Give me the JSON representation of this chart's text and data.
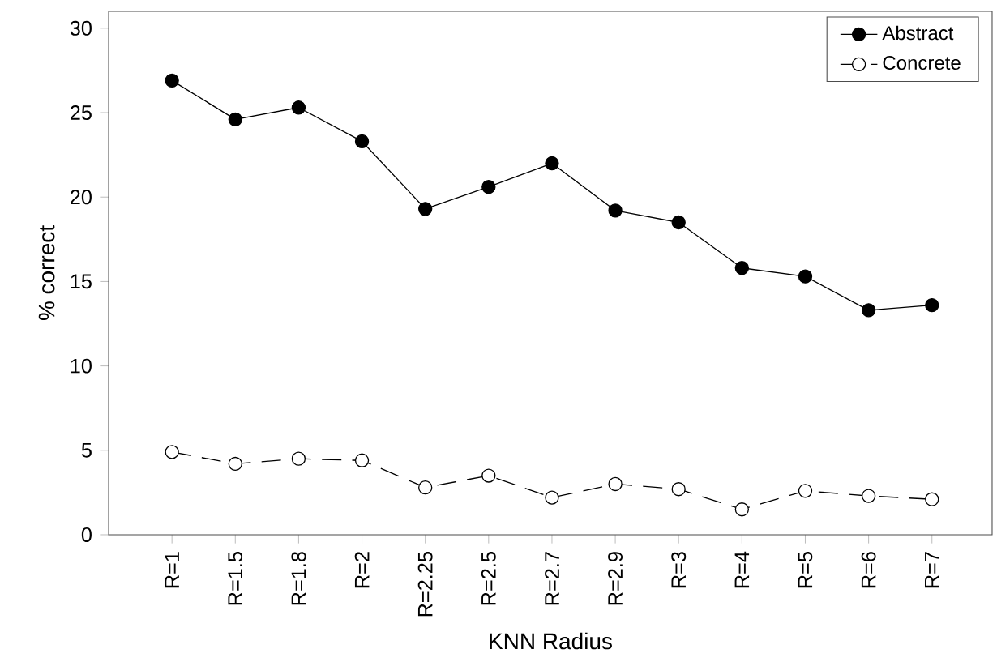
{
  "chart_data": {
    "type": "line",
    "xlabel": "KNN Radius",
    "ylabel": "% correct",
    "categories": [
      "R=1",
      "R=1.5",
      "R=1.8",
      "R=2",
      "R=2.25",
      "R=2.5",
      "R=2.7",
      "R=2.9",
      "R=3",
      "R=4",
      "R=5",
      "R=6",
      "R=7"
    ],
    "series": [
      {
        "name": "Abstract",
        "color": "#000000",
        "marker": "circle",
        "line_style": "solid",
        "values": [
          26.9,
          24.6,
          25.3,
          23.3,
          19.3,
          20.6,
          22.0,
          19.2,
          18.5,
          15.8,
          15.3,
          13.3,
          13.6
        ]
      },
      {
        "name": "Concrete",
        "color": "#000000",
        "marker": "circle",
        "line_style": "dashed",
        "values": [
          4.9,
          4.2,
          4.5,
          4.4,
          2.8,
          3.5,
          2.2,
          3.0,
          2.7,
          1.5,
          2.6,
          2.3,
          2.1
        ]
      }
    ],
    "ylim": [
      0,
      31
    ],
    "yticks": [
      0,
      5,
      10,
      15,
      20,
      25,
      30
    ],
    "legend": "top right"
  }
}
